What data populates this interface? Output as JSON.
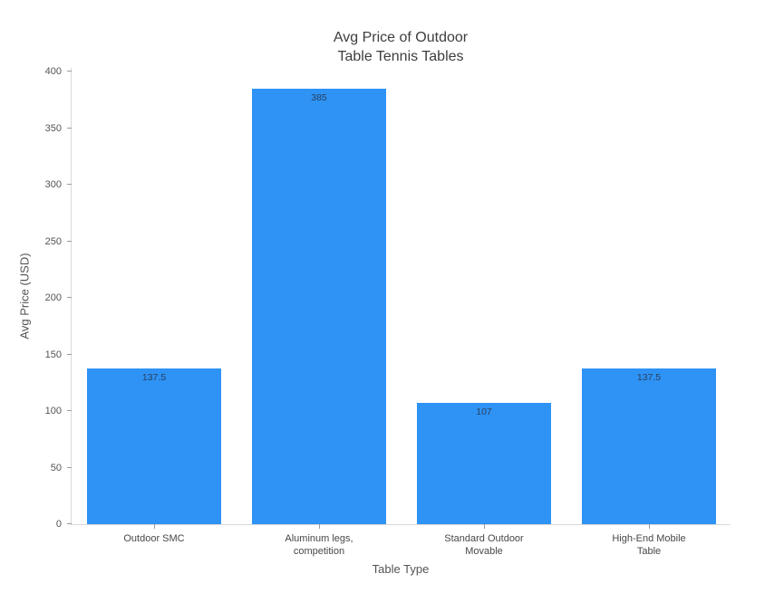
{
  "chart_data": {
    "type": "bar",
    "title": "Avg Price of Outdoor Table Tennis Tables",
    "title_lines": [
      "Avg Price of Outdoor",
      "Table Tennis Tables"
    ],
    "categories": [
      "Outdoor SMC",
      "Aluminum legs,\ncompetition",
      "Standard Outdoor\nMovable",
      "High-End Mobile\nTable"
    ],
    "values": [
      137.5,
      385,
      107,
      137.5
    ],
    "bar_labels": [
      "137.5",
      "385",
      "107",
      "137.5"
    ],
    "xlabel": "Table Type",
    "ylabel": "Avg Price (USD)",
    "yticks": [
      0,
      50,
      100,
      150,
      200,
      250,
      300,
      350,
      400
    ],
    "ylim": [
      0,
      404
    ],
    "grid": false,
    "legend": "none",
    "colors": {
      "bar_fill": "#2e93f5",
      "bar_value_text": "#2a3f5f",
      "axis_line": "#d9d9d9",
      "tick_mark": "#9a9a9a",
      "tick_text": "#545454",
      "title_text": "#3d3d3d",
      "background": "#ffffff"
    }
  }
}
